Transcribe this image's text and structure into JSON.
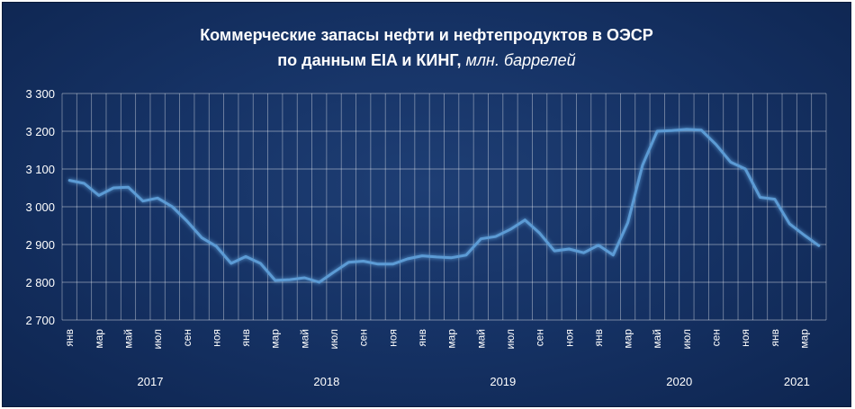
{
  "chart_data": {
    "type": "line",
    "title_line1": "Коммерческие запасы нефти и нефтепродуктов в ОЭСР",
    "title_line2": "по данным EIA и КИНГ,",
    "title_unit": "млн. баррелей",
    "ylim": [
      2700,
      3300
    ],
    "yticks": [
      2700,
      2800,
      2900,
      3000,
      3100,
      3200,
      3300
    ],
    "ytick_labels": [
      "2 700",
      "2 800",
      "2 900",
      "3 000",
      "3 100",
      "3 200",
      "3 300"
    ],
    "grid": "vertical and horizontal",
    "line_color": "#5b9bd5",
    "x_labels": [
      "янв",
      "мар",
      "май",
      "июл",
      "сен",
      "ноя",
      "янв",
      "мар",
      "май",
      "июл",
      "сен",
      "ноя",
      "янв",
      "мар",
      "май",
      "июл",
      "сен",
      "ноя",
      "янв",
      "мар",
      "май",
      "июл",
      "сен",
      "ноя",
      "янв",
      "мар"
    ],
    "years": [
      "2017",
      "2018",
      "2019",
      "2020",
      "2021"
    ],
    "months": [
      "2017-01",
      "2017-02",
      "2017-03",
      "2017-04",
      "2017-05",
      "2017-06",
      "2017-07",
      "2017-08",
      "2017-09",
      "2017-10",
      "2017-11",
      "2017-12",
      "2018-01",
      "2018-02",
      "2018-03",
      "2018-04",
      "2018-05",
      "2018-06",
      "2018-07",
      "2018-08",
      "2018-09",
      "2018-10",
      "2018-11",
      "2018-12",
      "2019-01",
      "2019-02",
      "2019-03",
      "2019-04",
      "2019-05",
      "2019-06",
      "2019-07",
      "2019-08",
      "2019-09",
      "2019-10",
      "2019-11",
      "2019-12",
      "2020-01",
      "2020-02",
      "2020-03",
      "2020-04",
      "2020-05",
      "2020-06",
      "2020-07",
      "2020-08",
      "2020-09",
      "2020-10",
      "2020-11",
      "2020-12",
      "2021-01",
      "2021-02",
      "2021-03",
      "2021-04"
    ],
    "values": [
      3070,
      3062,
      3030,
      3050,
      3052,
      3015,
      3023,
      3000,
      2962,
      2918,
      2895,
      2850,
      2868,
      2850,
      2805,
      2807,
      2812,
      2800,
      2827,
      2853,
      2856,
      2848,
      2848,
      2862,
      2870,
      2867,
      2865,
      2872,
      2915,
      2921,
      2940,
      2965,
      2930,
      2883,
      2888,
      2878,
      2898,
      2872,
      2958,
      3110,
      3200,
      3202,
      3205,
      3203,
      3165,
      3118,
      3100,
      3025,
      3020,
      2955,
      2925,
      2897
    ]
  }
}
